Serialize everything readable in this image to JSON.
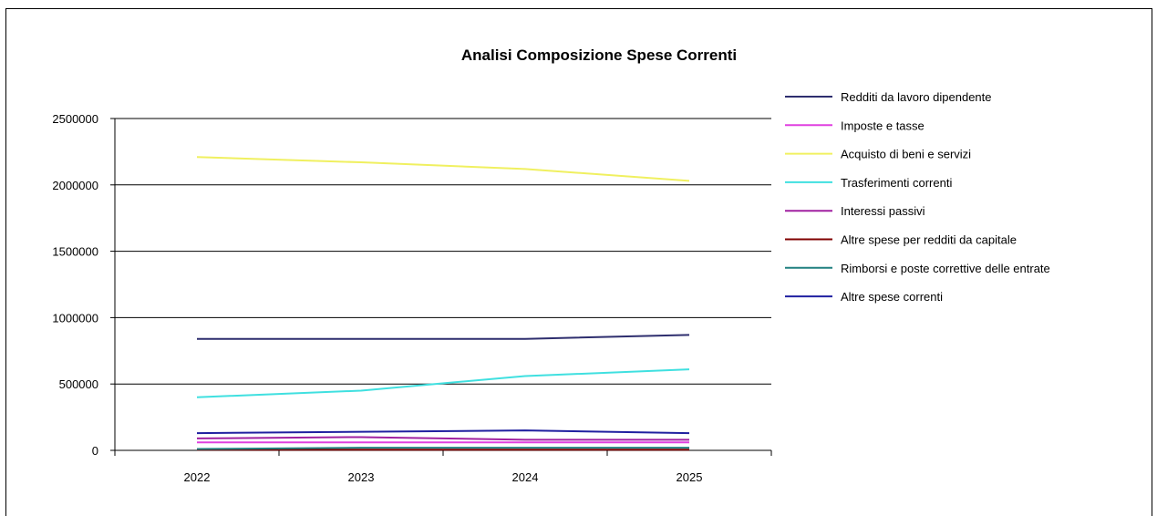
{
  "chart_data": {
    "type": "line",
    "title": "Analisi Composizione Spese Correnti",
    "xlabel": "",
    "ylabel": "",
    "categories": [
      "2022",
      "2023",
      "2024",
      "2025"
    ],
    "ylim": [
      0,
      2500000
    ],
    "yticks": [
      0,
      500000,
      1000000,
      1500000,
      2000000,
      2500000
    ],
    "ytick_labels": [
      "0",
      "500000",
      "1000000",
      "1500000",
      "2000000",
      "2500000"
    ],
    "grid": true,
    "legend_position": "right",
    "series": [
      {
        "name": "Redditi da lavoro dipendente",
        "color": "#2e2e6e",
        "values": [
          840000,
          840000,
          840000,
          870000
        ]
      },
      {
        "name": "Imposte e tasse",
        "color": "#e040e0",
        "values": [
          60000,
          60000,
          60000,
          60000
        ]
      },
      {
        "name": "Acquisto di beni e servizi",
        "color": "#f0f060",
        "values": [
          2210000,
          2170000,
          2120000,
          2030000
        ]
      },
      {
        "name": "Trasferimenti correnti",
        "color": "#40e0e0",
        "values": [
          400000,
          450000,
          560000,
          610000
        ]
      },
      {
        "name": "Interessi passivi",
        "color": "#a020a0",
        "values": [
          90000,
          100000,
          80000,
          80000
        ]
      },
      {
        "name": "Altre spese per redditi da capitale",
        "color": "#800000",
        "values": [
          5000,
          5000,
          5000,
          5000
        ]
      },
      {
        "name": "Rimborsi e poste correttive delle entrate",
        "color": "#208080",
        "values": [
          10000,
          20000,
          20000,
          20000
        ]
      },
      {
        "name": "Altre spese correnti",
        "color": "#2020a0",
        "values": [
          130000,
          140000,
          150000,
          130000
        ]
      }
    ]
  }
}
